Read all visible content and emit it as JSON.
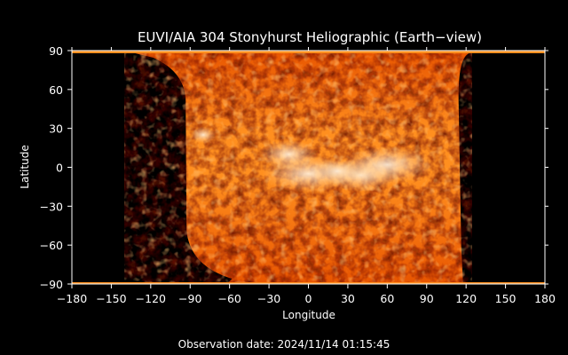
{
  "chart_data": {
    "type": "heatmap",
    "title": "EUVI/AIA 304 Stonyhurst Heliographic (Earth−view)",
    "xlabel": "Longitude",
    "ylabel": "Latitude",
    "xlim": [
      -180,
      180
    ],
    "ylim": [
      -90,
      90
    ],
    "xticks": [
      -180,
      -150,
      -120,
      -90,
      -60,
      -30,
      0,
      30,
      60,
      90,
      120,
      150,
      180
    ],
    "yticks": [
      90,
      60,
      30,
      0,
      -30,
      -60,
      -90
    ],
    "xtick_labels": [
      "−180",
      "−150",
      "−120",
      "−90",
      "−60",
      "−30",
      "0",
      "30",
      "60",
      "90",
      "120",
      "150",
      "180"
    ],
    "ytick_labels": [
      "90",
      "60",
      "30",
      "0",
      "−30",
      "−60",
      "−90"
    ],
    "coverage_lon_range": [
      -90,
      115
    ],
    "colormap": [
      "#3a0000",
      "#a81e00",
      "#e85500",
      "#ff8f1f",
      "#ffd9a6"
    ],
    "no_data_color": "#000000",
    "footer": "Observation date: 2024/11/14 01:15:45"
  }
}
